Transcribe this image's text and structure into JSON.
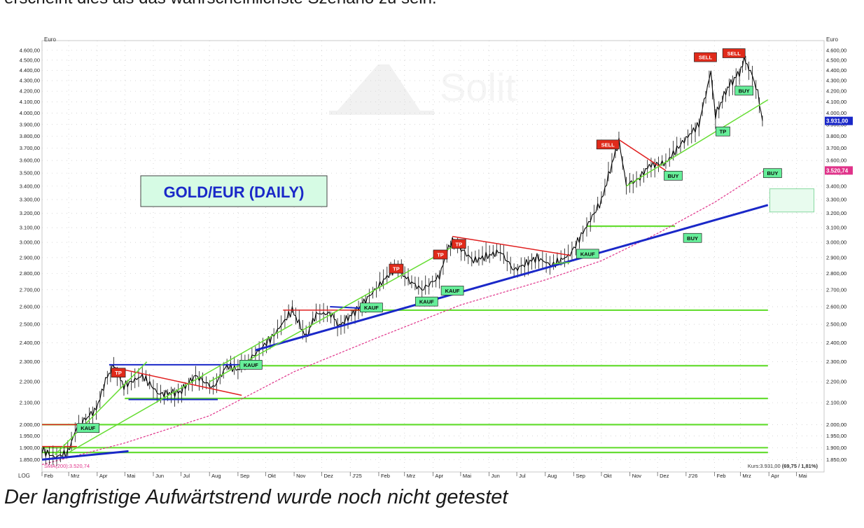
{
  "page": {
    "top_text": "erscheint dies als das wahrscheinlichste Szenario zu sein.",
    "caption": "Der langfristige Aufwärtstrend wurde noch nicht getestet"
  },
  "chart_data": {
    "type": "line",
    "title": "GOLD/EUR (DAILY)",
    "y_unit": "Euro",
    "y_scale": "log",
    "ylim": [
      1800,
      4700
    ],
    "y_ticks": [
      1850,
      1900,
      1950,
      2000,
      2100,
      2200,
      2300,
      2400,
      2500,
      2600,
      2700,
      2800,
      2900,
      3000,
      3100,
      3200,
      3300,
      3400,
      3500,
      3600,
      3700,
      3800,
      3900,
      4000,
      4100,
      4200,
      4300,
      4400,
      4500,
      4600
    ],
    "y_tick_labels": [
      "1.850,00",
      "1.900,00",
      "1.950,00",
      "2.000,00",
      "2.100,00",
      "2.200,00",
      "2.300,00",
      "2.400,00",
      "2.500,00",
      "2.600,00",
      "2.700,00",
      "2.800,00",
      "2.900,00",
      "3.000,00",
      "3.100,00",
      "3.200,00",
      "3.300,00",
      "3.400,00",
      "3.500,00",
      "3.600,00",
      "3.700,00",
      "3.800,00",
      "3.900,00",
      "4.000,00",
      "4.100,00",
      "4.200,00",
      "4.300,00",
      "4.400,00",
      "4.500,00",
      "4.600,00"
    ],
    "x_start": "2024-02-01",
    "x_end": "2026-05-31",
    "x_ticks": [
      {
        "date": "2024-02-01",
        "label": "Feb"
      },
      {
        "date": "2024-03-01",
        "label": "Mrz"
      },
      {
        "date": "2024-04-01",
        "label": "Apr"
      },
      {
        "date": "2024-05-01",
        "label": "Mai"
      },
      {
        "date": "2024-06-01",
        "label": "Jun"
      },
      {
        "date": "2024-07-01",
        "label": "Jul"
      },
      {
        "date": "2024-08-01",
        "label": "Aug"
      },
      {
        "date": "2024-09-01",
        "label": "Sep"
      },
      {
        "date": "2024-10-01",
        "label": "Okt"
      },
      {
        "date": "2024-11-01",
        "label": "Nov"
      },
      {
        "date": "2024-12-01",
        "label": "Dez"
      },
      {
        "date": "2025-01-01",
        "label": "J'25"
      },
      {
        "date": "2025-02-01",
        "label": "Feb"
      },
      {
        "date": "2025-03-01",
        "label": "Mrz"
      },
      {
        "date": "2025-04-01",
        "label": "Apr"
      },
      {
        "date": "2025-05-01",
        "label": "Mai"
      },
      {
        "date": "2025-06-01",
        "label": "Jun"
      },
      {
        "date": "2025-07-01",
        "label": "Jul"
      },
      {
        "date": "2025-08-01",
        "label": "Aug"
      },
      {
        "date": "2025-09-01",
        "label": "Sep"
      },
      {
        "date": "2025-10-01",
        "label": "Okt"
      },
      {
        "date": "2025-11-01",
        "label": "Nov"
      },
      {
        "date": "2025-12-01",
        "label": "Dez"
      },
      {
        "date": "2026-01-01",
        "label": "J'26"
      },
      {
        "date": "2026-02-01",
        "label": "Feb"
      },
      {
        "date": "2026-03-01",
        "label": "Mrz"
      },
      {
        "date": "2026-04-01",
        "label": "Apr"
      },
      {
        "date": "2026-05-01",
        "label": "Mai"
      }
    ],
    "corner_label": "LOG",
    "price_series": {
      "color": "#000000",
      "points": [
        [
          "2024-02-01",
          1890
        ],
        [
          "2024-02-15",
          1860
        ],
        [
          "2024-02-29",
          1880
        ],
        [
          "2024-03-10",
          1990
        ],
        [
          "2024-03-31",
          2070
        ],
        [
          "2024-04-12",
          2230
        ],
        [
          "2024-04-19",
          2280
        ],
        [
          "2024-04-30",
          2180
        ],
        [
          "2024-05-20",
          2230
        ],
        [
          "2024-06-07",
          2140
        ],
        [
          "2024-06-30",
          2150
        ],
        [
          "2024-07-17",
          2230
        ],
        [
          "2024-08-05",
          2170
        ],
        [
          "2024-08-20",
          2280
        ],
        [
          "2024-09-01",
          2260
        ],
        [
          "2024-09-20",
          2340
        ],
        [
          "2024-10-10",
          2440
        ],
        [
          "2024-10-30",
          2580
        ],
        [
          "2024-11-14",
          2430
        ],
        [
          "2024-11-25",
          2560
        ],
        [
          "2024-12-11",
          2560
        ],
        [
          "2024-12-20",
          2490
        ],
        [
          "2025-01-10",
          2590
        ],
        [
          "2025-02-10",
          2780
        ],
        [
          "2025-02-20",
          2840
        ],
        [
          "2025-03-05",
          2760
        ],
        [
          "2025-03-20",
          2700
        ],
        [
          "2025-04-08",
          2780
        ],
        [
          "2025-04-16",
          2940
        ],
        [
          "2025-04-22",
          3010
        ],
        [
          "2025-05-15",
          2880
        ],
        [
          "2025-06-13",
          2940
        ],
        [
          "2025-06-28",
          2820
        ],
        [
          "2025-07-23",
          2900
        ],
        [
          "2025-08-08",
          2850
        ],
        [
          "2025-08-28",
          2920
        ],
        [
          "2025-09-15",
          3110
        ],
        [
          "2025-10-01",
          3290
        ],
        [
          "2025-10-20",
          3760
        ],
        [
          "2025-10-28",
          3410
        ],
        [
          "2025-11-10",
          3450
        ],
        [
          "2025-11-22",
          3560
        ],
        [
          "2025-12-10",
          3580
        ],
        [
          "2025-12-26",
          3730
        ],
        [
          "2026-01-15",
          3900
        ],
        [
          "2026-01-28",
          4380
        ],
        [
          "2026-02-02",
          3980
        ],
        [
          "2026-02-15",
          4230
        ],
        [
          "2026-02-28",
          4380
        ],
        [
          "2026-03-05",
          4500
        ],
        [
          "2026-03-12",
          4400
        ],
        [
          "2026-03-20",
          4180
        ],
        [
          "2026-03-25",
          3931
        ]
      ]
    },
    "sma": {
      "label": "SMA(200):3.520,74",
      "color": "#e0338a",
      "points": [
        [
          "2024-02-01",
          1830
        ],
        [
          "2024-05-01",
          1920
        ],
        [
          "2024-08-01",
          2040
        ],
        [
          "2024-11-01",
          2250
        ],
        [
          "2025-02-01",
          2430
        ],
        [
          "2025-05-01",
          2610
        ],
        [
          "2025-08-01",
          2760
        ],
        [
          "2025-10-01",
          2880
        ],
        [
          "2025-12-01",
          3060
        ],
        [
          "2026-02-01",
          3280
        ],
        [
          "2026-03-27",
          3520
        ]
      ]
    },
    "current_price": {
      "value": 3931,
      "label": "3.931,00",
      "color": "#1a28c8"
    },
    "sma_marker": {
      "value": 3520.74,
      "label": "3.520,74",
      "color": "#e0338a"
    },
    "status": {
      "prefix": "Kurs:3.931,00 ",
      "change": "(69,75 / 1,81%)"
    },
    "horizontal_support_lines": [
      {
        "y": 1880,
        "from": "2024-02-01",
        "to": "2026-03-31",
        "color": "#66dd33"
      },
      {
        "y": 1900,
        "from": "2024-02-01",
        "to": "2026-03-31",
        "color": "#66dd33"
      },
      {
        "y": 2000,
        "from": "2024-02-01",
        "to": "2026-03-31",
        "color": "#66dd33"
      },
      {
        "y": 2120,
        "from": "2024-05-01",
        "to": "2026-03-31",
        "color": "#66dd33"
      },
      {
        "y": 2280,
        "from": "2024-09-01",
        "to": "2026-03-31",
        "color": "#66dd33"
      },
      {
        "y": 2580,
        "from": "2025-01-01",
        "to": "2026-03-31",
        "color": "#66dd33"
      },
      {
        "y": 3110,
        "from": "2025-09-15",
        "to": "2025-12-20",
        "color": "#66dd33"
      }
    ],
    "trend_lines": [
      {
        "color": "#1a28c8",
        "width": 3,
        "points": [
          [
            "2024-02-01",
            1850
          ],
          [
            "2024-05-05",
            1885
          ]
        ]
      },
      {
        "color": "#1a28c8",
        "width": 3,
        "points": [
          [
            "2024-09-20",
            2360
          ],
          [
            "2026-03-31",
            3260
          ]
        ]
      },
      {
        "color": "#1a28c8",
        "width": 2,
        "points": [
          [
            "2024-04-14",
            2285
          ],
          [
            "2024-09-05",
            2285
          ]
        ]
      },
      {
        "color": "#1a28c8",
        "width": 2,
        "points": [
          [
            "2024-05-05",
            2115
          ],
          [
            "2024-08-10",
            2115
          ]
        ]
      },
      {
        "color": "#1a28c8",
        "width": 2,
        "points": [
          [
            "2024-12-10",
            2600
          ],
          [
            "2025-01-20",
            2590
          ]
        ]
      },
      {
        "color": "#e02020",
        "width": 1.5,
        "points": [
          [
            "2024-02-01",
            2000
          ],
          [
            "2024-03-10",
            2000
          ]
        ]
      },
      {
        "color": "#e02020",
        "width": 1.5,
        "points": [
          [
            "2024-02-01",
            1905
          ],
          [
            "2024-03-10",
            1905
          ]
        ]
      },
      {
        "color": "#e02020",
        "width": 1.5,
        "points": [
          [
            "2024-04-20",
            2270
          ],
          [
            "2024-09-05",
            2135
          ]
        ]
      },
      {
        "color": "#e02020",
        "width": 1.5,
        "points": [
          [
            "2024-10-20",
            2580
          ],
          [
            "2025-01-15",
            2580
          ]
        ]
      },
      {
        "color": "#e02020",
        "width": 1.5,
        "points": [
          [
            "2025-04-22",
            3040
          ],
          [
            "2025-08-28",
            2915
          ]
        ]
      },
      {
        "color": "#e02020",
        "width": 1.5,
        "points": [
          [
            "2025-10-20",
            3770
          ],
          [
            "2025-12-10",
            3520
          ]
        ]
      },
      {
        "color": "#66dd33",
        "width": 1.5,
        "points": [
          [
            "2024-02-15",
            1870
          ],
          [
            "2024-05-25",
            2300
          ]
        ]
      },
      {
        "color": "#66dd33",
        "width": 1.5,
        "points": [
          [
            "2024-03-01",
            1880
          ],
          [
            "2024-10-30",
            2500
          ]
        ]
      },
      {
        "color": "#66dd33",
        "width": 1.5,
        "points": [
          [
            "2024-08-01",
            2200
          ],
          [
            "2025-04-22",
            2970
          ]
        ]
      },
      {
        "color": "#66dd33",
        "width": 1.5,
        "points": [
          [
            "2025-08-10",
            2860
          ],
          [
            "2025-08-28",
            2870
          ]
        ]
      },
      {
        "color": "#66dd33",
        "width": 1.5,
        "points": [
          [
            "2025-10-28",
            3400
          ],
          [
            "2026-03-31",
            4120
          ]
        ]
      }
    ],
    "annotations": [
      {
        "label": "KAUF",
        "kind": "buy",
        "date": "2024-03-22",
        "y": 1985
      },
      {
        "label": "TP",
        "kind": "sell",
        "date": "2024-04-24",
        "y": 2245
      },
      {
        "label": "KAUF",
        "kind": "buy",
        "date": "2024-09-15",
        "y": 2285
      },
      {
        "label": "KAUF",
        "kind": "buy",
        "date": "2025-01-24",
        "y": 2595
      },
      {
        "label": "TP",
        "kind": "sell",
        "date": "2025-02-20",
        "y": 2830
      },
      {
        "label": "KAUF",
        "kind": "buy",
        "date": "2025-03-25",
        "y": 2630
      },
      {
        "label": "TP",
        "kind": "sell",
        "date": "2025-04-09",
        "y": 2920
      },
      {
        "label": "KAUF",
        "kind": "buy",
        "date": "2025-04-22",
        "y": 2695
      },
      {
        "label": "TP",
        "kind": "sell",
        "date": "2025-04-29",
        "y": 2990
      },
      {
        "label": "KAUF",
        "kind": "buy",
        "date": "2025-09-16",
        "y": 2925
      },
      {
        "label": "SELL",
        "kind": "sell",
        "date": "2025-10-08",
        "y": 3730
      },
      {
        "label": "BUY",
        "kind": "buy",
        "date": "2025-12-18",
        "y": 3480
      },
      {
        "label": "BUY",
        "kind": "buy",
        "date": "2026-01-08",
        "y": 3030
      },
      {
        "label": "SELL",
        "kind": "sell",
        "date": "2026-01-22",
        "y": 4530
      },
      {
        "label": "TP",
        "kind": "buy",
        "date": "2026-02-10",
        "y": 3840
      },
      {
        "label": "SELL",
        "kind": "sell",
        "date": "2026-02-22",
        "y": 4570
      },
      {
        "label": "BUY",
        "kind": "buy",
        "date": "2026-03-05",
        "y": 4205
      },
      {
        "label": "BUY",
        "kind": "buy",
        "date": "2026-04-05",
        "y": 3500
      }
    ],
    "target_zone": {
      "from": "2026-04-02",
      "to": "2026-05-20",
      "y_low": 3210,
      "y_high": 3380,
      "fill": "#e8fbee",
      "stroke": "#88d8a0"
    },
    "watermark": "Solit"
  }
}
